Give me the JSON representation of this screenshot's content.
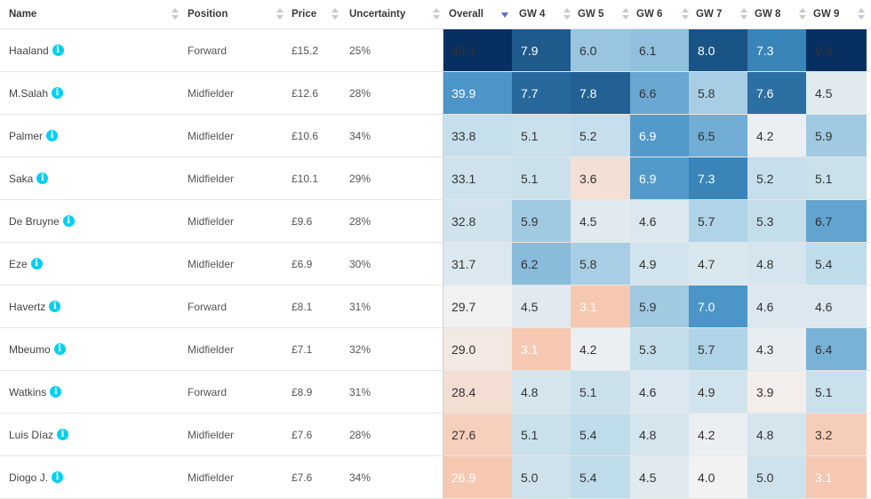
{
  "columns": [
    {
      "key": "name",
      "label": "Name"
    },
    {
      "key": "position",
      "label": "Position"
    },
    {
      "key": "price",
      "label": "Price"
    },
    {
      "key": "uncertainty",
      "label": "Uncertainty"
    },
    {
      "key": "overall",
      "label": "Overall"
    },
    {
      "key": "gw4",
      "label": "GW 4"
    },
    {
      "key": "gw5",
      "label": "GW 5"
    },
    {
      "key": "gw6",
      "label": "GW 6"
    },
    {
      "key": "gw7",
      "label": "GW 7"
    },
    {
      "key": "gw8",
      "label": "GW 8"
    },
    {
      "key": "gw9",
      "label": "GW 9"
    }
  ],
  "sorted_column": "overall",
  "sort_direction": "descending",
  "info_icon_glyph": "i",
  "colors": {
    "info_icon": "#05d0f0",
    "sort_active": "#5b6bd6",
    "scale_low": "#f7c8b1",
    "scale_mid": "#f2f2f2",
    "scale_high": "#053061"
  },
  "rows": [
    {
      "name": "Haaland",
      "position": "Forward",
      "price": "£15.2",
      "uncertainty": "25%",
      "overall": "45.1",
      "gw": [
        "7.9",
        "6.0",
        "6.1",
        "8.0",
        "7.3",
        "9.8"
      ]
    },
    {
      "name": "M.Salah",
      "position": "Midfielder",
      "price": "£12.6",
      "uncertainty": "28%",
      "overall": "39.9",
      "gw": [
        "7.7",
        "7.8",
        "6.6",
        "5.8",
        "7.6",
        "4.5"
      ]
    },
    {
      "name": "Palmer",
      "position": "Midfielder",
      "price": "£10.6",
      "uncertainty": "34%",
      "overall": "33.8",
      "gw": [
        "5.1",
        "5.2",
        "6.9",
        "6.5",
        "4.2",
        "5.9"
      ]
    },
    {
      "name": "Saka",
      "position": "Midfielder",
      "price": "£10.1",
      "uncertainty": "29%",
      "overall": "33.1",
      "gw": [
        "5.1",
        "3.6",
        "6.9",
        "7.3",
        "5.2",
        "5.1"
      ]
    },
    {
      "name": "De Bruyne",
      "position": "Midfielder",
      "price": "£9.6",
      "uncertainty": "28%",
      "overall": "32.8",
      "gw": [
        "5.9",
        "4.5",
        "4.6",
        "5.7",
        "5.3",
        "6.7"
      ]
    },
    {
      "name": "Eze",
      "position": "Midfielder",
      "price": "£6.9",
      "uncertainty": "30%",
      "overall": "31.7",
      "gw": [
        "6.2",
        "5.8",
        "4.9",
        "4.7",
        "4.8",
        "5.4"
      ]
    },
    {
      "name": "Havertz",
      "position": "Forward",
      "price": "£8.1",
      "uncertainty": "31%",
      "overall": "29.7",
      "gw": [
        "4.5",
        "3.1",
        "5.9",
        "7.0",
        "4.6",
        "4.6"
      ]
    },
    {
      "name": "Mbeumo",
      "position": "Midfielder",
      "price": "£7.1",
      "uncertainty": "32%",
      "overall": "29.0",
      "gw": [
        "3.1",
        "4.2",
        "5.3",
        "5.7",
        "4.3",
        "6.4"
      ]
    },
    {
      "name": "Watkins",
      "position": "Forward",
      "price": "£8.9",
      "uncertainty": "31%",
      "overall": "28.4",
      "gw": [
        "4.8",
        "5.1",
        "4.6",
        "4.9",
        "3.9",
        "5.1"
      ]
    },
    {
      "name": "Luis Díaz",
      "position": "Midfielder",
      "price": "£7.6",
      "uncertainty": "28%",
      "overall": "27.6",
      "gw": [
        "5.1",
        "5.4",
        "4.8",
        "4.2",
        "4.8",
        "3.2"
      ]
    },
    {
      "name": "Diogo J.",
      "position": "Midfielder",
      "price": "£7.6",
      "uncertainty": "34%",
      "overall": "26.9",
      "gw": [
        "5.0",
        "5.4",
        "4.5",
        "4.0",
        "5.0",
        "3.1"
      ]
    }
  ]
}
